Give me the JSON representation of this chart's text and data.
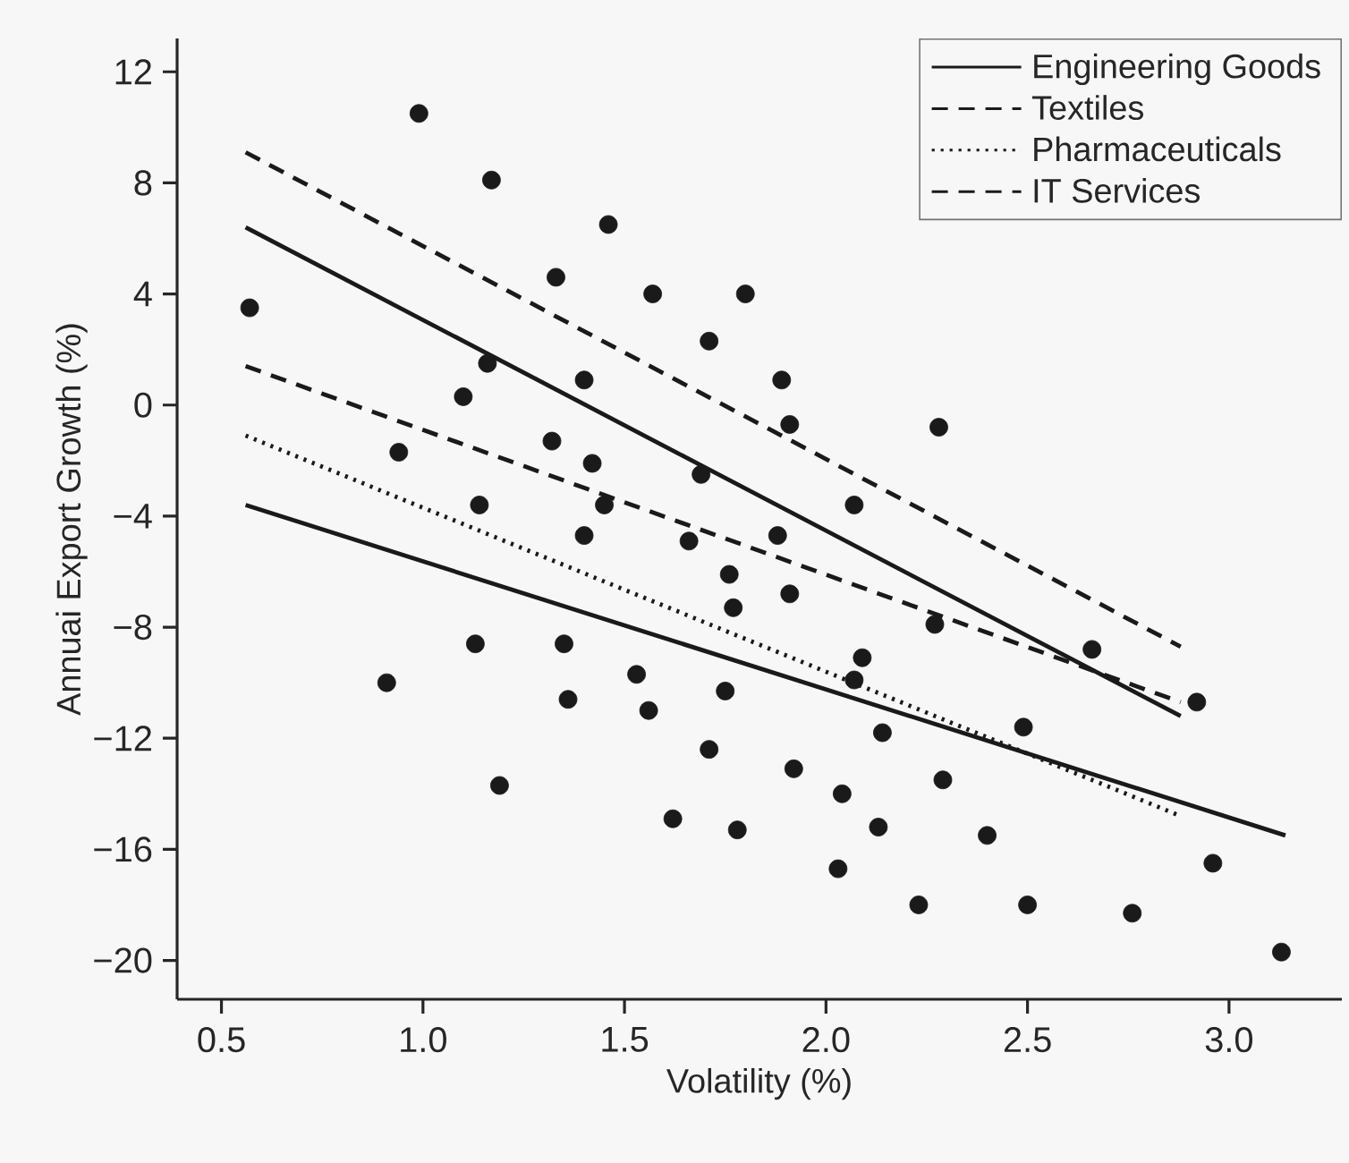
{
  "chart_data": {
    "type": "scatter",
    "xlabel": "Volatility (%)",
    "ylabel": "Annuai Export Growth (%)",
    "xlim": [
      0.39,
      3.28
    ],
    "ylim": [
      -21.4,
      13.2
    ],
    "xticks": [
      0.5,
      {
        "value": 1.0,
        "label": "1.0"
      },
      1.5,
      {
        "value": 2.0,
        "label": "2.0"
      },
      2.5,
      {
        "value": 3.0,
        "label": "3.0"
      }
    ],
    "yticks": [
      {
        "value": -20,
        "label": "−20"
      },
      {
        "value": -16,
        "label": "−16"
      },
      {
        "value": -12,
        "label": "−12"
      },
      {
        "value": -8,
        "label": "−8"
      },
      {
        "value": -4,
        "label": "−4"
      },
      0,
      4,
      8,
      12
    ],
    "legend": "top right",
    "series": [
      {
        "marker": "circle",
        "color": "#1a1a1a",
        "x": [
          0.99,
          1.17,
          0.57,
          1.16,
          1.1,
          0.94,
          1.14,
          1.46,
          1.33,
          1.57,
          1.8,
          1.71,
          1.4,
          1.89,
          1.91,
          1.32,
          1.42,
          1.69,
          1.45,
          1.88,
          1.4,
          1.66,
          1.76,
          1.91,
          1.77,
          2.07,
          1.13,
          1.35,
          1.53,
          2.09,
          2.07,
          1.36,
          1.56,
          1.75,
          2.14,
          1.71,
          1.92,
          1.19,
          2.04,
          1.62,
          2.13,
          1.78,
          2.03,
          0.91,
          2.28,
          2.27,
          2.66,
          2.92,
          2.49,
          2.29,
          2.4,
          2.96,
          2.23,
          2.5,
          2.76,
          3.13
        ],
        "values": [
          10.5,
          8.1,
          3.5,
          1.5,
          0.3,
          -1.7,
          -3.6,
          6.5,
          4.6,
          4.0,
          4.0,
          2.3,
          0.9,
          0.9,
          -0.7,
          -1.3,
          -2.1,
          -2.5,
          -3.6,
          -4.7,
          -4.7,
          -4.9,
          -6.1,
          -6.8,
          -7.3,
          -3.6,
          -8.6,
          -8.6,
          -9.7,
          -9.1,
          -9.9,
          -10.6,
          -11.0,
          -10.3,
          -11.8,
          -12.4,
          -13.1,
          -13.7,
          -14.0,
          -14.9,
          -15.2,
          -15.3,
          -16.7,
          -10.0,
          -0.8,
          -7.9,
          -8.8,
          -10.7,
          -11.6,
          -13.5,
          -15.5,
          -16.5,
          -18.0,
          -18.0,
          -18.3,
          -19.7
        ]
      },
      {
        "type": "line",
        "name": "Engineering Goods",
        "color": "#1a1a1a",
        "line_style": "solid",
        "x": [
          0.56,
          2.88
        ],
        "values": [
          6.4,
          -11.2
        ]
      },
      {
        "type": "line",
        "name": "Textiles",
        "color": "#1a1a1a",
        "line_style": "dashed",
        "x": [
          0.56,
          2.88
        ],
        "values": [
          9.1,
          -8.7
        ]
      },
      {
        "type": "line",
        "name": "Pharmaceuticals",
        "color": "#1a1a1a",
        "line_style": "dotted",
        "x": [
          0.56,
          2.88
        ],
        "values": [
          -1.1,
          -14.8
        ]
      },
      {
        "type": "line",
        "name": "IT Services",
        "color": "#1a1a1a",
        "line_style": "dashed",
        "x": [
          0.56,
          2.88
        ],
        "values": [
          1.4,
          -10.7
        ]
      },
      {
        "type": "line",
        "color": "#1a1a1a",
        "line_style": "solid",
        "x": [
          0.56,
          3.14
        ],
        "values": [
          -3.6,
          -15.5
        ]
      }
    ]
  }
}
